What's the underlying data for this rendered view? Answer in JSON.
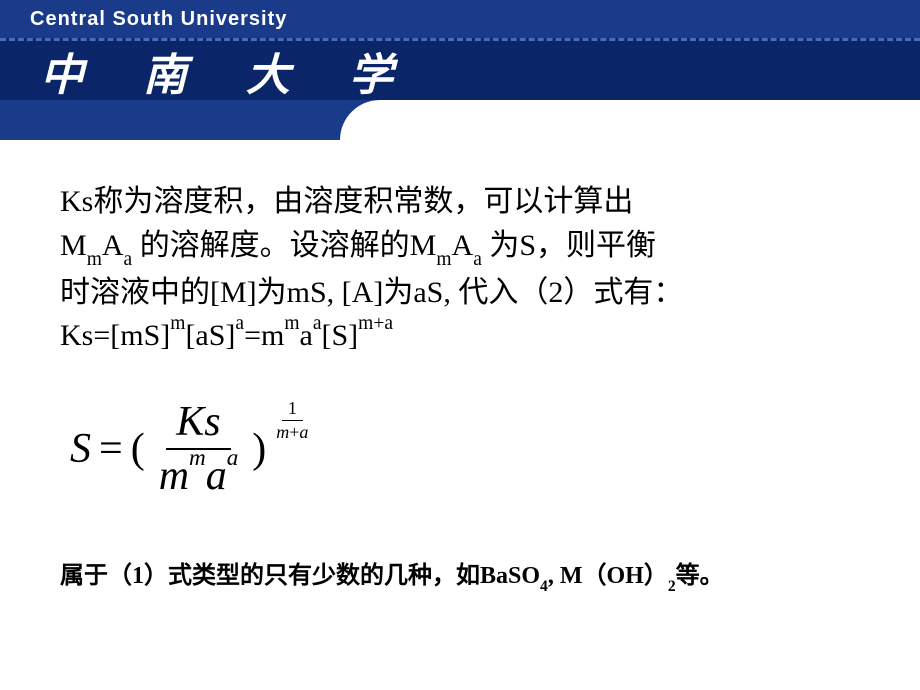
{
  "header": {
    "university_en": "Central South University",
    "university_cn": "中 南 大 学"
  },
  "body": {
    "line1_a": "Ks称为溶度积，由溶度积常数，可以计算出",
    "line2_a": "M",
    "line2_sub1": "m",
    "line2_b": "A",
    "line2_sub2": "a",
    "line2_c": " 的溶解度。设溶解的M",
    "line2_sub3": "m",
    "line2_d": "A",
    "line2_sub4": "a",
    "line2_e": " 为S，则平衡",
    "line3": "时溶液中的[M]为mS, [A]为aS, 代入（2）式有：",
    "line4_a": "Ks=[mS]",
    "line4_sup1": "m",
    "line4_b": "[aS]",
    "line4_sup2": "a",
    "line4_c": "=m",
    "line4_sup3": "m",
    "line4_d": "a",
    "line4_sup4": "a",
    "line4_e": "[S]",
    "line4_sup5": "m+a"
  },
  "formula": {
    "S": "S",
    "equals": "=",
    "lparen": "(",
    "rparen": ")",
    "num": "Ks",
    "den_m": "m",
    "den_m_exp": "m",
    "den_a": "a",
    "den_a_exp": "a",
    "exp_num": "1",
    "exp_den_m": "m",
    "exp_den_plus": "+",
    "exp_den_a": "a"
  },
  "footer": {
    "text_a": "属于（1）式类型的只有少数的几种，如BaSO",
    "sub1": "4",
    "text_b": ", M（OH）",
    "sub2": "2",
    "text_c": "等。"
  },
  "colors": {
    "header_dark": "#0b2668",
    "header_blue": "#1a3a8a",
    "dash": "#4a6ab8",
    "white": "#ffffff",
    "text": "#000000"
  }
}
